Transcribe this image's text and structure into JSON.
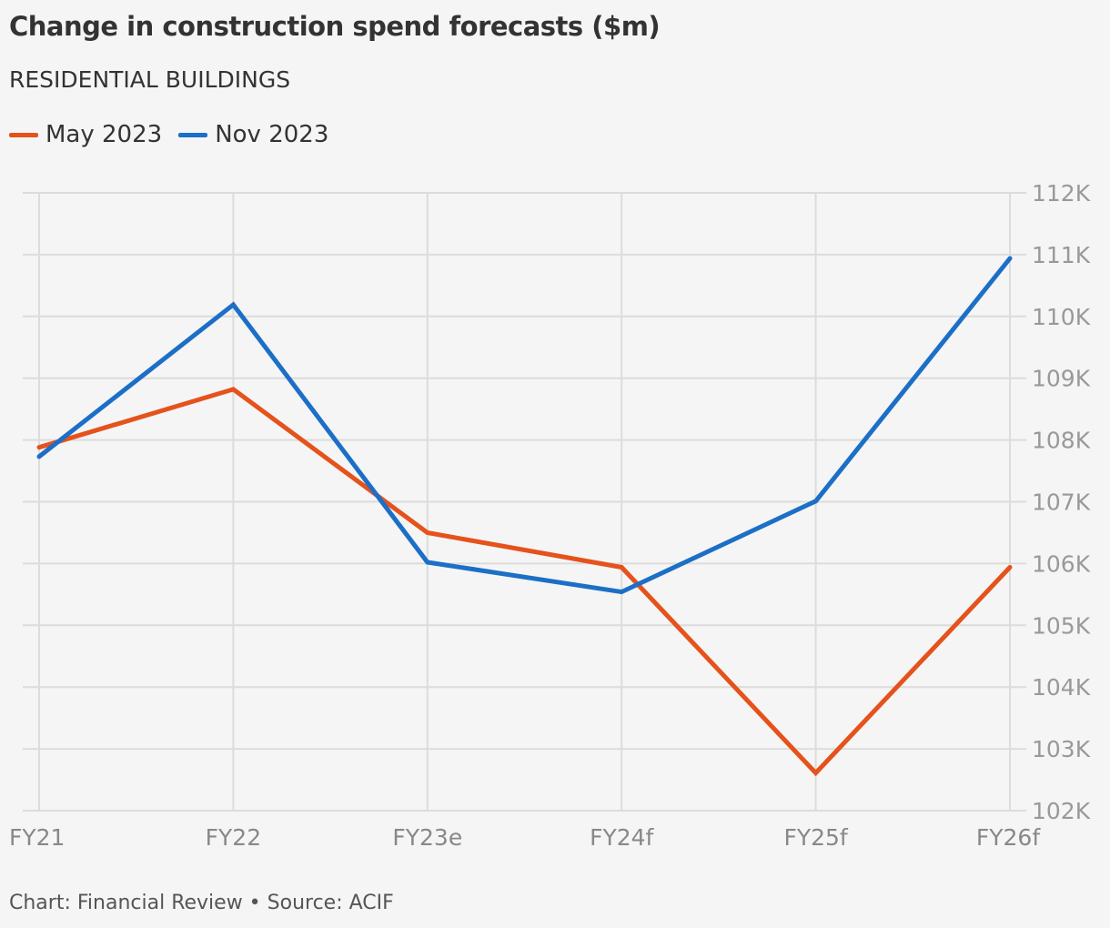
{
  "header": {
    "title": "Change in construction spend forecasts ($m)",
    "subtitle": "RESIDENTIAL BUILDINGS"
  },
  "legend": [
    {
      "label": "May 2023",
      "color": "#e5521c"
    },
    {
      "label": "Nov 2023",
      "color": "#1c6fc6"
    }
  ],
  "footer": {
    "text": "Chart: Financial Review • Source: ACIF"
  },
  "chart_data": {
    "type": "line",
    "title": "Change in construction spend forecasts ($m)",
    "subtitle": "RESIDENTIAL BUILDINGS",
    "categories": [
      "FY21",
      "FY22",
      "FY23e",
      "FY24f",
      "FY25f",
      "FY26f"
    ],
    "series": [
      {
        "name": "May 2023",
        "color": "#e5521c",
        "values": [
          107880,
          108820,
          106500,
          105940,
          102610,
          105940
        ]
      },
      {
        "name": "Nov 2023",
        "color": "#1c6fc6",
        "values": [
          107730,
          110190,
          106020,
          105540,
          107010,
          110940
        ]
      }
    ],
    "ylim": [
      102000,
      112000
    ],
    "yticks": [
      102000,
      103000,
      104000,
      105000,
      106000,
      107000,
      108000,
      109000,
      110000,
      111000,
      112000
    ],
    "ytick_labels": [
      "102K",
      "103K",
      "104K",
      "105K",
      "106K",
      "107K",
      "108K",
      "109K",
      "110K",
      "111K",
      "112K"
    ],
    "y_axis_position": "right",
    "grid": true,
    "legend_position": "top-left"
  }
}
